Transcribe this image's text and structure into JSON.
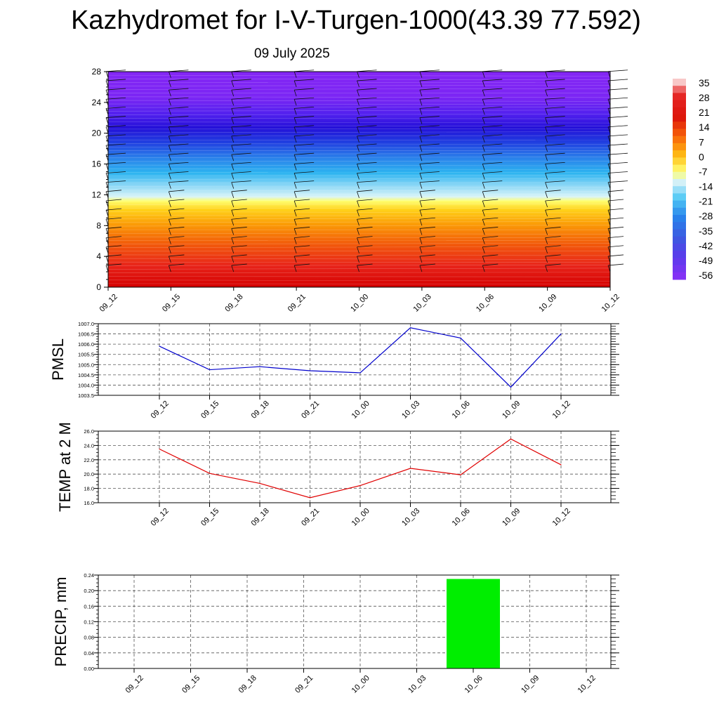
{
  "title": "Kazhydromet for I-V-Turgen-1000(43.39 77.592)",
  "date": "09 July 2025",
  "time_labels": [
    "09_12",
    "09_15",
    "09_18",
    "09_21",
    "10_00",
    "10_03",
    "10_06",
    "10_09",
    "10_12"
  ],
  "colorbar": {
    "labels": [
      "35",
      "28",
      "21",
      "14",
      "7",
      "0",
      "-7",
      "-14",
      "-21",
      "-28",
      "-35",
      "-42",
      "-49",
      "-56"
    ]
  },
  "chart_data": [
    {
      "type": "heatmap",
      "name": "temperature-height-section",
      "x": [
        "09_12",
        "09_15",
        "09_18",
        "09_21",
        "10_00",
        "10_03",
        "10_06",
        "10_09",
        "10_12"
      ],
      "y_ticks": [
        0,
        4,
        8,
        12,
        16,
        20,
        24,
        28
      ],
      "ylim": [
        0,
        28
      ],
      "ylabel": "",
      "color_levels": [
        35,
        28,
        21,
        14,
        7,
        0,
        -7,
        -14,
        -21,
        -28,
        -35,
        -42,
        -49,
        -56
      ],
      "wind_barbs": true
    },
    {
      "type": "line",
      "ylabel": "PMSL",
      "categories": [
        "09_12",
        "09_15",
        "09_18",
        "09_21",
        "10_00",
        "10_03",
        "10_06",
        "10_09",
        "10_12"
      ],
      "values": [
        1005.9,
        1004.75,
        1004.9,
        1004.7,
        1004.6,
        1006.8,
        1006.3,
        1003.9,
        1006.5
      ],
      "ylim": [
        1003.5,
        1007.0
      ],
      "yticks": [
        "1003.5",
        "1004.0",
        "1004.5",
        "1005.0",
        "1005.5",
        "1006.0",
        "1006.5",
        "1007.0"
      ],
      "color": "#0000cc",
      "grid": true
    },
    {
      "type": "line",
      "ylabel": "TEMP at 2 M",
      "categories": [
        "09_12",
        "09_15",
        "09_18",
        "09_21",
        "10_00",
        "10_03",
        "10_06",
        "10_09",
        "10_12"
      ],
      "values": [
        23.5,
        20.1,
        18.7,
        16.7,
        18.4,
        20.8,
        19.9,
        24.9,
        21.3
      ],
      "ylim": [
        16.0,
        26.0
      ],
      "yticks": [
        "16.0",
        "18.0",
        "20.0",
        "22.0",
        "24.0",
        "26.0"
      ],
      "color": "#e00000",
      "grid": true
    },
    {
      "type": "bar",
      "ylabel": "PRECIP, mm",
      "categories": [
        "09_12",
        "09_15",
        "09_18",
        "09_21",
        "10_00",
        "10_03",
        "10_06",
        "10_09",
        "10_12"
      ],
      "values": [
        0,
        0,
        0,
        0,
        0,
        0,
        0.23,
        0,
        0
      ],
      "ylim": [
        0,
        0.24
      ],
      "yticks": [
        "0.00",
        "0.04",
        "0.08",
        "0.12",
        "0.16",
        "0.20",
        "0.24"
      ],
      "color": "#00ee00",
      "grid": true
    }
  ]
}
